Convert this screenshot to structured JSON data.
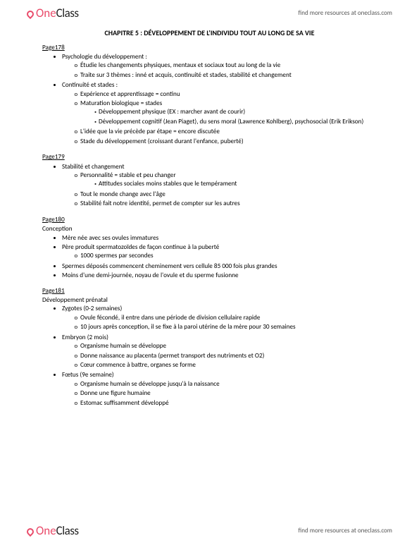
{
  "brand": {
    "part1": "One",
    "part2": "Class"
  },
  "header_link": "find more resources at oneclass.com",
  "footer_link": "find more resources at oneclass.com",
  "title": "CHAPITRE 5 : DÉVELOPPEMENT DE L'INDIVIDU TOUT AU LONG DE SA VIE",
  "p178": {
    "ref": "Page178",
    "i0": "Psychologie du développement :",
    "i0a": "Étudie les changements physiques, mentaux et sociaux tout au long de la vie",
    "i0b": "Traite sur 3 thèmes : inné et acquis, continuité et stades, stabilité et changement",
    "i1": "Continuité et stades :",
    "i1a": "Expérience et apprentissage = continu",
    "i1b": "Maturation biologique = stades",
    "i1b1": "Développement physique (EX : marcher avant de courir)",
    "i1b2": "Développement cognitif (Jean Piaget), du sens moral (Lawrence Kohlberg), psychosocial (Erik Erikson)",
    "i1c": "L'idée que la vie précède par étape = encore discutée",
    "i1d": "Stade du développement (croissant durant l'enfance, puberté)"
  },
  "p179": {
    "ref": "Page179",
    "i0": "Stabilité et changement",
    "i0a": "Personnalité = stable et peu changer",
    "i0a1": "Attitudes sociales moins stables que le tempérament",
    "i0b": "Tout le monde change avec l'âge",
    "i0c": "Stabilité fait notre identité, permet de compter sur les autres"
  },
  "p180": {
    "ref": "Page180",
    "heading": "Conception",
    "i0": "Mère née avec ses ovules immatures",
    "i1": "Père produit spermatozoïdes de façon continue à la puberté",
    "i1a": "1000 spermes par secondes",
    "i2": "Spermes déposés commencent cheminement vers cellule 85 000 fois plus grandes",
    "i3": "Moins d'une demi-journée, noyau de l'ovule et du sperme fusionne"
  },
  "p181": {
    "ref": "Page181",
    "heading": "Développement prénatal",
    "i0": "Zygotes (0-2 semaines)",
    "i0a": "Ovule fécondé, il entre dans une période de division cellulaire rapide",
    "i0b": "10 jours après conception, il se fixe à la paroi utérine de la mère pour 30 semaines",
    "i1": "Embryon (2 mois)",
    "i1a": "Organisme humain se développe",
    "i1b": "Donne naissance au placenta (permet transport des nutriments et O2)",
    "i1c": "Cœur commence à battre, organes se forme",
    "i2": "Fœtus (9e semaine)",
    "i2a": "Organisme humain se développe jusqu'à la naissance",
    "i2b": "Donne une figure humaine",
    "i2c": "Estomac suffisamment développé"
  }
}
